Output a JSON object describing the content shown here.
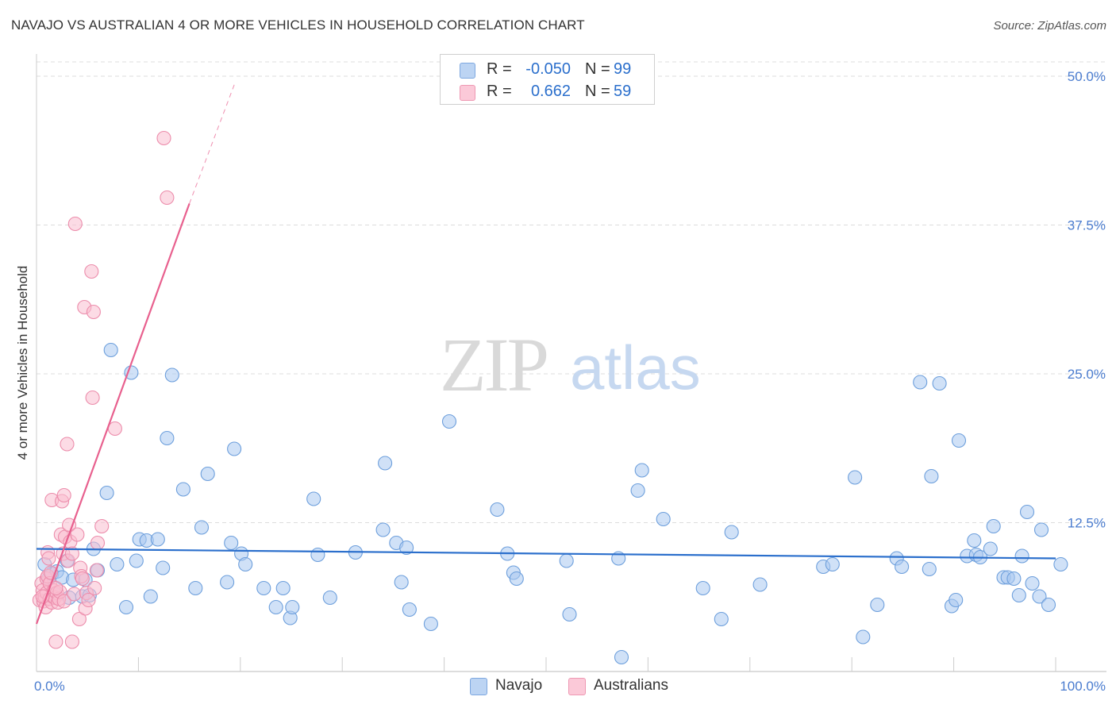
{
  "title": "NAVAJO VS AUSTRALIAN 4 OR MORE VEHICLES IN HOUSEHOLD CORRELATION CHART",
  "source": "Source: ZipAtlas.com",
  "watermark": {
    "zip": "ZIP",
    "atlas": "atlas"
  },
  "colors": {
    "navajo_fill": "#aac8f0",
    "navajo_stroke": "#6d9fdc",
    "navajo_line": "#2b6fcc",
    "australian_fill": "#f9bdd0",
    "australian_stroke": "#ec8cab",
    "australian_line": "#e8608e",
    "axis_label": "#4a7ccf",
    "grid": "#dddddd"
  },
  "legend": {
    "r_label": "R =",
    "n_label": "N =",
    "rows": [
      {
        "series": "Navajo",
        "r": "-0.050",
        "n": "99"
      },
      {
        "series": "Australians",
        "r": "0.662",
        "n": "59"
      }
    ]
  },
  "bottom_legend": [
    "Navajo",
    "Australians"
  ],
  "chart_data": {
    "type": "scatter",
    "title": "NAVAJO VS AUSTRALIAN 4 OR MORE VEHICLES IN HOUSEHOLD CORRELATION CHART",
    "xlabel": "",
    "ylabel": "4 or more Vehicles in Household",
    "xlim": [
      0,
      100
    ],
    "ylim": [
      0,
      50
    ],
    "x_tick_labels": [
      {
        "value": 0,
        "label": "0.0%"
      },
      {
        "value": 100,
        "label": "100.0%"
      }
    ],
    "y_tick_labels": [
      {
        "value": 12.5,
        "label": "12.5%"
      },
      {
        "value": 25,
        "label": "25.0%"
      },
      {
        "value": 37.5,
        "label": "37.5%"
      },
      {
        "value": 50,
        "label": "50.0%"
      }
    ],
    "grid": true,
    "series": [
      {
        "name": "Navajo",
        "r": -0.05,
        "n": 99,
        "trend": {
          "x": [
            0,
            100
          ],
          "y": [
            10.3,
            9.5
          ]
        },
        "points": [
          [
            0.8,
            9.0
          ],
          [
            1.2,
            7.8
          ],
          [
            1.5,
            8.2
          ],
          [
            1.8,
            6.5
          ],
          [
            2.0,
            8.4
          ],
          [
            2.5,
            7.9
          ],
          [
            3.0,
            9.3
          ],
          [
            3.2,
            6.2
          ],
          [
            3.6,
            7.7
          ],
          [
            4.5,
            6.3
          ],
          [
            4.8,
            7.7
          ],
          [
            5.2,
            6.4
          ],
          [
            5.6,
            10.3
          ],
          [
            6.0,
            8.5
          ],
          [
            6.9,
            15.0
          ],
          [
            7.3,
            27.0
          ],
          [
            7.9,
            9.0
          ],
          [
            8.8,
            5.4
          ],
          [
            9.3,
            25.1
          ],
          [
            9.8,
            9.3
          ],
          [
            10.1,
            11.1
          ],
          [
            10.8,
            11.0
          ],
          [
            11.2,
            6.3
          ],
          [
            11.9,
            11.1
          ],
          [
            12.4,
            8.7
          ],
          [
            12.8,
            19.6
          ],
          [
            13.3,
            24.9
          ],
          [
            14.4,
            15.3
          ],
          [
            15.6,
            7.0
          ],
          [
            16.2,
            12.1
          ],
          [
            16.8,
            16.6
          ],
          [
            18.7,
            7.5
          ],
          [
            19.1,
            10.8
          ],
          [
            19.4,
            18.7
          ],
          [
            20.1,
            9.9
          ],
          [
            20.5,
            9.0
          ],
          [
            22.3,
            7.0
          ],
          [
            23.5,
            5.4
          ],
          [
            24.2,
            7.0
          ],
          [
            24.9,
            4.5
          ],
          [
            25.1,
            5.4
          ],
          [
            27.2,
            14.5
          ],
          [
            27.6,
            9.8
          ],
          [
            28.8,
            6.2
          ],
          [
            31.3,
            10.0
          ],
          [
            34.0,
            11.9
          ],
          [
            34.2,
            17.5
          ],
          [
            35.3,
            10.8
          ],
          [
            35.8,
            7.5
          ],
          [
            36.3,
            10.4
          ],
          [
            36.6,
            5.2
          ],
          [
            38.7,
            4.0
          ],
          [
            40.5,
            21.0
          ],
          [
            45.2,
            13.6
          ],
          [
            46.2,
            9.9
          ],
          [
            46.8,
            8.3
          ],
          [
            47.1,
            7.8
          ],
          [
            52.0,
            9.3
          ],
          [
            52.3,
            4.8
          ],
          [
            57.1,
            9.5
          ],
          [
            57.4,
            1.2
          ],
          [
            59.0,
            15.2
          ],
          [
            59.4,
            16.9
          ],
          [
            61.5,
            12.8
          ],
          [
            65.4,
            7.0
          ],
          [
            67.2,
            4.4
          ],
          [
            68.2,
            11.7
          ],
          [
            71.0,
            7.3
          ],
          [
            77.2,
            8.8
          ],
          [
            78.1,
            9.0
          ],
          [
            80.3,
            16.3
          ],
          [
            81.1,
            2.9
          ],
          [
            82.5,
            5.6
          ],
          [
            84.4,
            9.5
          ],
          [
            84.9,
            8.8
          ],
          [
            86.7,
            24.3
          ],
          [
            87.6,
            8.6
          ],
          [
            87.8,
            16.4
          ],
          [
            88.6,
            24.2
          ],
          [
            89.8,
            5.5
          ],
          [
            90.2,
            6.0
          ],
          [
            90.5,
            19.4
          ],
          [
            91.3,
            9.7
          ],
          [
            92.0,
            11.0
          ],
          [
            92.2,
            9.8
          ],
          [
            92.6,
            9.6
          ],
          [
            93.6,
            10.3
          ],
          [
            93.9,
            12.2
          ],
          [
            94.9,
            7.9
          ],
          [
            95.3,
            7.9
          ],
          [
            95.9,
            7.8
          ],
          [
            96.4,
            6.4
          ],
          [
            96.7,
            9.7
          ],
          [
            97.2,
            13.4
          ],
          [
            97.7,
            7.4
          ],
          [
            98.4,
            6.3
          ],
          [
            98.6,
            11.9
          ],
          [
            99.3,
            5.6
          ],
          [
            100.5,
            9.0
          ]
        ]
      },
      {
        "name": "Australians",
        "r": 0.662,
        "n": 59,
        "trend": {
          "x": [
            0,
            15
          ],
          "y": [
            4.0,
            39.3
          ],
          "dash_extension": {
            "x": [
              15,
              19.5
            ],
            "y": [
              39.3,
              49.5
            ]
          }
        },
        "points": [
          [
            0.3,
            6.0
          ],
          [
            0.5,
            7.4
          ],
          [
            0.6,
            6.8
          ],
          [
            0.7,
            5.9
          ],
          [
            0.8,
            6.3
          ],
          [
            0.9,
            5.4
          ],
          [
            1.0,
            7.8
          ],
          [
            1.0,
            6.6
          ],
          [
            1.1,
            8.0
          ],
          [
            1.1,
            10.0
          ],
          [
            1.2,
            9.5
          ],
          [
            1.3,
            6.1
          ],
          [
            1.3,
            7.4
          ],
          [
            1.4,
            8.3
          ],
          [
            1.5,
            14.4
          ],
          [
            1.5,
            5.8
          ],
          [
            1.6,
            6.3
          ],
          [
            1.7,
            6.8
          ],
          [
            1.8,
            6.2
          ],
          [
            1.9,
            2.5
          ],
          [
            2.0,
            6.6
          ],
          [
            2.1,
            5.8
          ],
          [
            2.2,
            6.1
          ],
          [
            2.3,
            6.7
          ],
          [
            2.4,
            11.5
          ],
          [
            2.5,
            14.3
          ],
          [
            2.6,
            9.9
          ],
          [
            2.7,
            5.9
          ],
          [
            2.7,
            14.8
          ],
          [
            2.8,
            11.3
          ],
          [
            3.0,
            19.1
          ],
          [
            3.1,
            9.3
          ],
          [
            3.2,
            12.3
          ],
          [
            3.3,
            10.9
          ],
          [
            3.5,
            2.5
          ],
          [
            3.5,
            9.9
          ],
          [
            3.7,
            6.5
          ],
          [
            3.8,
            37.6
          ],
          [
            4.0,
            11.5
          ],
          [
            4.2,
            4.4
          ],
          [
            4.3,
            8.7
          ],
          [
            4.4,
            8.0
          ],
          [
            4.5,
            7.8
          ],
          [
            4.7,
            30.6
          ],
          [
            4.8,
            5.3
          ],
          [
            4.9,
            6.6
          ],
          [
            5.1,
            6.0
          ],
          [
            5.4,
            33.6
          ],
          [
            5.5,
            23.0
          ],
          [
            5.6,
            30.2
          ],
          [
            5.7,
            7.0
          ],
          [
            5.9,
            8.5
          ],
          [
            6.0,
            10.8
          ],
          [
            6.4,
            12.2
          ],
          [
            7.7,
            20.4
          ],
          [
            12.5,
            44.8
          ],
          [
            12.8,
            39.8
          ],
          [
            0.6,
            6.3
          ],
          [
            1.9,
            7.0
          ]
        ]
      }
    ]
  }
}
